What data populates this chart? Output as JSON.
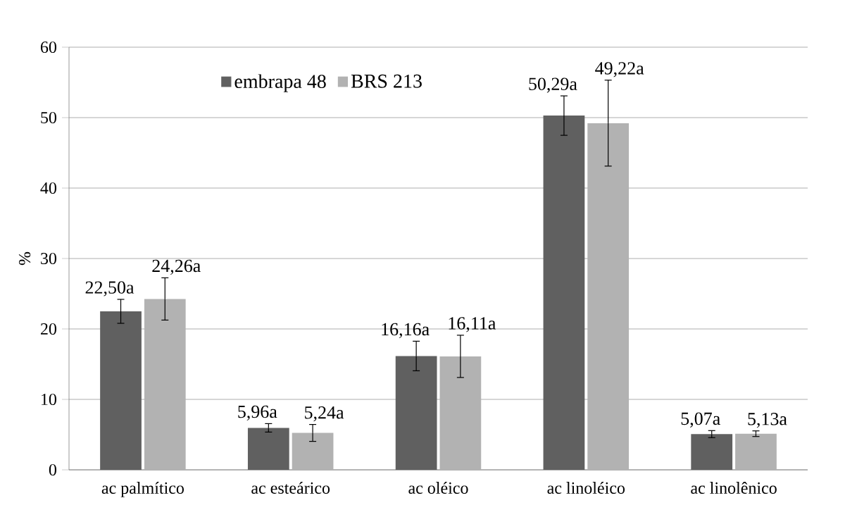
{
  "chart_data": {
    "type": "bar",
    "ylabel": "%",
    "categories": [
      "ac palmítico",
      "ac esteárico",
      "ac oléico",
      "ac linoléico",
      "ac linolênico"
    ],
    "series": [
      {
        "name": "embrapa 48",
        "color": "#606060",
        "values": [
          22.5,
          5.96,
          16.16,
          50.29,
          5.07
        ],
        "errors": [
          1.7,
          0.6,
          2.1,
          2.8,
          0.5
        ],
        "value_labels": [
          "22,50a",
          "5,96a",
          "16,16a",
          "50,29a",
          "5,07a"
        ]
      },
      {
        "name": "BRS 213",
        "color": "#b2b2b2",
        "values": [
          24.26,
          5.24,
          16.11,
          49.22,
          5.13
        ],
        "errors": [
          3.0,
          1.2,
          3.0,
          6.1,
          0.4
        ],
        "value_labels": [
          "24,26a",
          "5,24a",
          "16,11a",
          "49,22a",
          "5,13a"
        ]
      }
    ],
    "ylim": [
      0,
      60
    ],
    "yticks": [
      0,
      10,
      20,
      30,
      40,
      50,
      60
    ],
    "grid": "y",
    "legend": "top left"
  }
}
